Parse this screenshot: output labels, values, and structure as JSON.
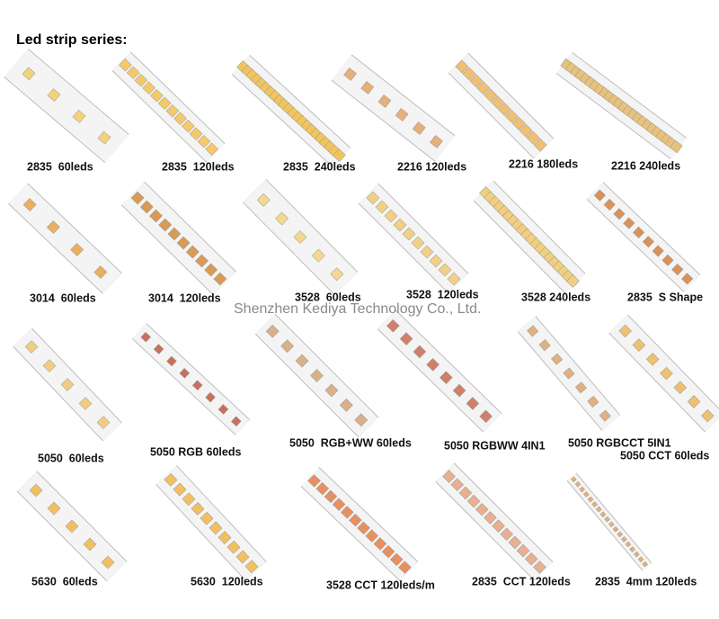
{
  "header": {
    "title": "Led strip series:"
  },
  "watermark": "Shenzhen Kediya Technology Co., Ltd.",
  "items": [
    {
      "label": "2835  60leds"
    },
    {
      "label": "2835  120leds"
    },
    {
      "label": "2835  240leds"
    },
    {
      "label": "2216 120leds"
    },
    {
      "label": "2216 180leds"
    },
    {
      "label": "2216 240leds"
    },
    {
      "label": "3014  60leds"
    },
    {
      "label": "3014  120leds"
    },
    {
      "label": "3528  60leds"
    },
    {
      "label": "3528  120leds"
    },
    {
      "label": "3528 240leds"
    },
    {
      "label": "2835  S Shape"
    },
    {
      "label": "5050  60leds"
    },
    {
      "label": "5050 RGB 60leds"
    },
    {
      "label": "5050  RGB+WW 60leds"
    },
    {
      "label": "5050 RGBWW 4IN1"
    },
    {
      "label": "5050 RGBCCT 5IN1"
    },
    {
      "label": "5050 CCT 60leds"
    },
    {
      "label": "5630  60leds"
    },
    {
      "label": "5630  120leds"
    },
    {
      "label": "3528 CCT 120leds/m"
    },
    {
      "label": "2835  CCT 120leds"
    },
    {
      "label": "2835  4mm 120leds"
    }
  ]
}
